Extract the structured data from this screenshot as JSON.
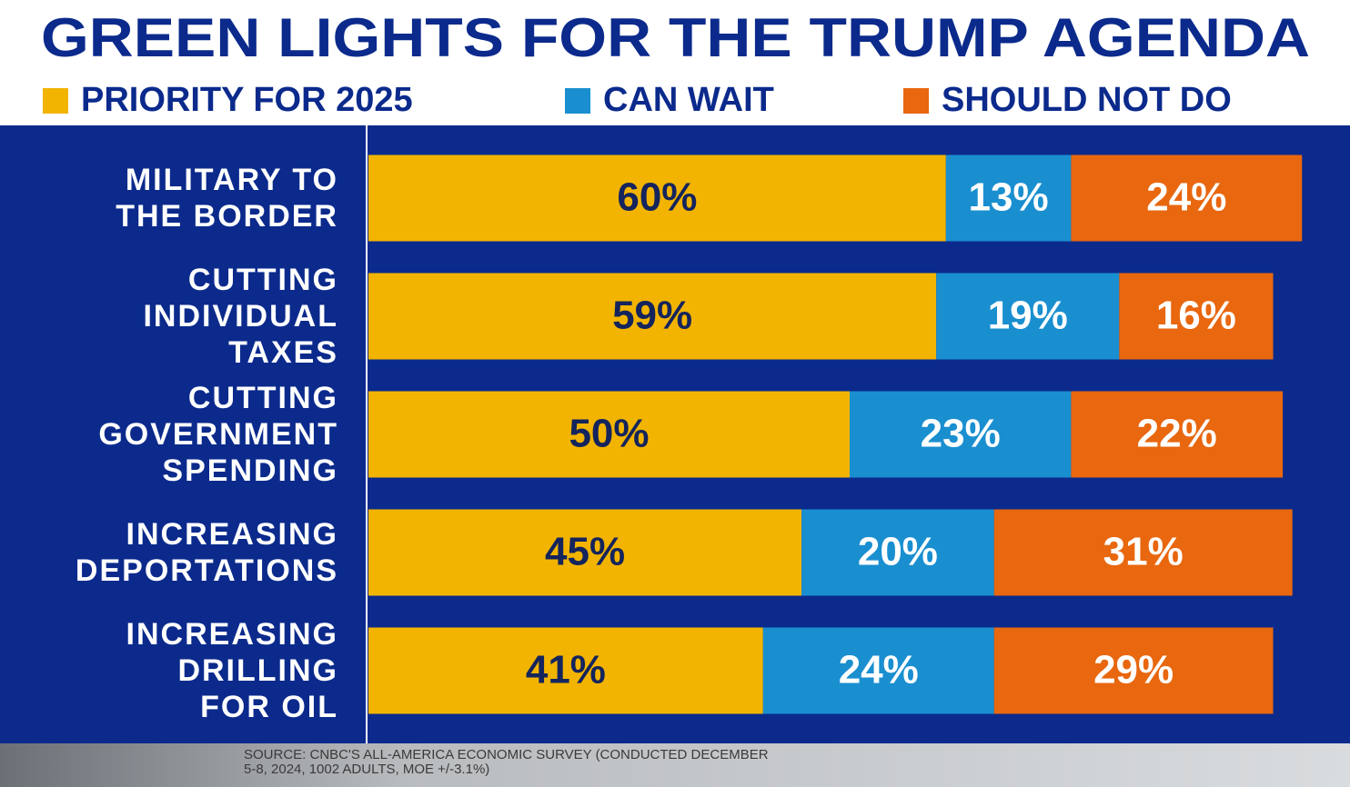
{
  "chart_data": {
    "type": "stacked_bar_horizontal",
    "title": "GREEN LIGHTS FOR THE TRUMP AGENDA",
    "categories": [
      "MILITARY TO\nTHE BORDER",
      "CUTTING\nINDIVIDUAL\nTAXES",
      "CUTTING\nGOVERNMENT\nSPENDING",
      "INCREASING\nDEPORTATIONS",
      "INCREASING\nDRILLING\nFOR OIL"
    ],
    "series": [
      {
        "name": "PRIORITY FOR 2025",
        "color": "#f2b400",
        "label_color": "#14245c",
        "values": [
          60,
          59,
          50,
          45,
          41
        ],
        "value_labels": [
          "60%",
          "59%",
          "50%",
          "45%",
          "41%"
        ]
      },
      {
        "name": "CAN WAIT",
        "color": "#1a8fd0",
        "label_color": "#ffffff",
        "values": [
          13,
          19,
          23,
          20,
          24
        ],
        "value_labels": [
          "13%",
          "19%",
          "23%",
          "20%",
          "24%"
        ]
      },
      {
        "name": "SHOULD NOT DO",
        "color": "#e8670f",
        "label_color": "#ffffff",
        "values": [
          24,
          16,
          22,
          31,
          29
        ],
        "value_labels": [
          "24%",
          "16%",
          "22%",
          "31%",
          "29%"
        ]
      }
    ],
    "source": "SOURCE: CNBC'S ALL-AMERICA ECONOMIC SURVEY (CONDUCTED DECEMBER\n5-8, 2024, 1002 ADULTS, MOE +/-3.1%)"
  }
}
